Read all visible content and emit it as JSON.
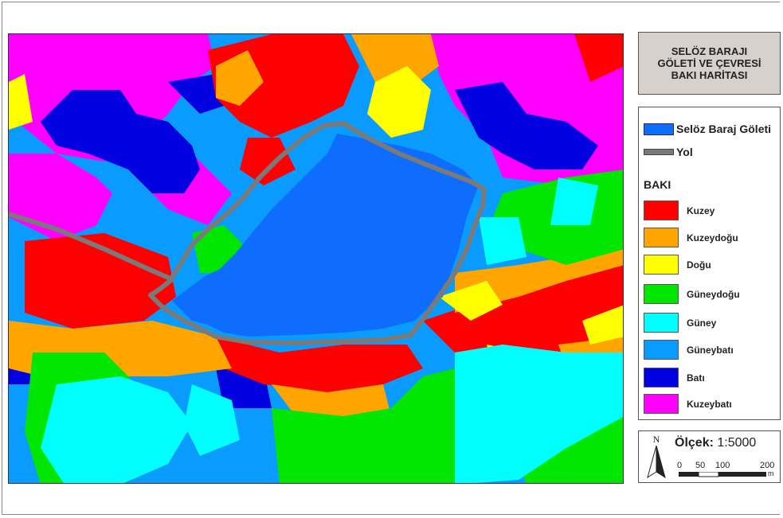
{
  "title": {
    "line1": "SELÖZ BARAJI",
    "line2": "GÖLETİ VE ÇEVRESİ",
    "line3": "BAKI HARİTASI"
  },
  "legend": {
    "lake_label": "Selöz Baraj Göleti",
    "road_label": "Yol",
    "aspect_heading": "BAKI",
    "classes": [
      {
        "label": "Kuzey",
        "color": "#ff0000"
      },
      {
        "label": "Kuzeydoğu",
        "color": "#ffa500"
      },
      {
        "label": "Doğu",
        "color": "#ffff00"
      },
      {
        "label": "Güneydoğu",
        "color": "#00e600"
      },
      {
        "label": "Güney",
        "color": "#00ffff"
      },
      {
        "label": "Güneybatı",
        "color": "#0a9bff"
      },
      {
        "label": "Batı",
        "color": "#0000e0"
      },
      {
        "label": "Kuzeybatı",
        "color": "#ff00ff"
      }
    ]
  },
  "scale": {
    "north_label": "N",
    "label": "Ölçek:",
    "value": "1:5000",
    "ticks": [
      "0",
      "50",
      "100",
      "200"
    ],
    "unit": "m"
  },
  "colors": {
    "lake": "#0e6dfc",
    "road": "#7a7a7a"
  }
}
